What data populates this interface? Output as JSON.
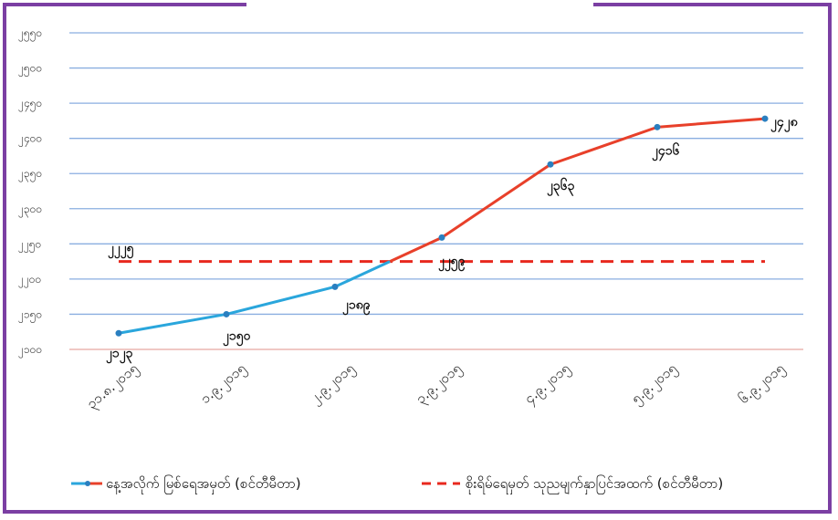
{
  "chart_data": {
    "type": "line",
    "title": "",
    "xlabel": "",
    "ylabel": "",
    "categories": [
      "၃၁.၈.၂၀၁၅",
      "၁.၉.၂၀၁၅",
      "၂.၉.၂၀၁၅",
      "၃.၉.၂၀၁၅",
      "၄.၉.၂၀၁၅",
      "၅.၉.၂၀၁၅",
      "၆.၉.၂၀၁၅"
    ],
    "ylim": [
      2100,
      2550
    ],
    "yticks": [
      2100,
      2150,
      2200,
      2250,
      2300,
      2350,
      2400,
      2450,
      2500,
      2550
    ],
    "ytick_labels": [
      "၂၁၀၀",
      "၂၁၅၀",
      "၂၂၀၀",
      "၂၂၅၀",
      "၂၃၀၀",
      "၂၃၅၀",
      "၂၄၀၀",
      "၂၄၅၀",
      "၂၅၀၀",
      "၂၅၅၀"
    ],
    "grid": true,
    "legend_position": "bottom",
    "series": [
      {
        "name": "နေ့အလိုက် မြစ်ရေအမှတ် (စင်တီမီတာ)",
        "values": [
          2123,
          2150,
          2189,
          2259,
          2363,
          2416,
          2428
        ],
        "labels": [
          "၂၁၂၃",
          "၂၁၅၀",
          "၂၁၈၉",
          "၂၂၅၉",
          "၂၃၆၃",
          "၂၄၁၆",
          "၂၄၂၈"
        ],
        "colors": [
          "#2aa6dc",
          "#e8402a"
        ]
      },
      {
        "name": "စိုးရိမ်ရေမှတ် သုညမျက်နှာပြင်အထက် (စင်တီမီတာ)",
        "values": [
          2225,
          2225,
          2225,
          2225,
          2225,
          2225,
          2225
        ],
        "labels": [
          "၂၂၂၅"
        ],
        "color": "#e8281e",
        "style": "dashed"
      }
    ]
  }
}
